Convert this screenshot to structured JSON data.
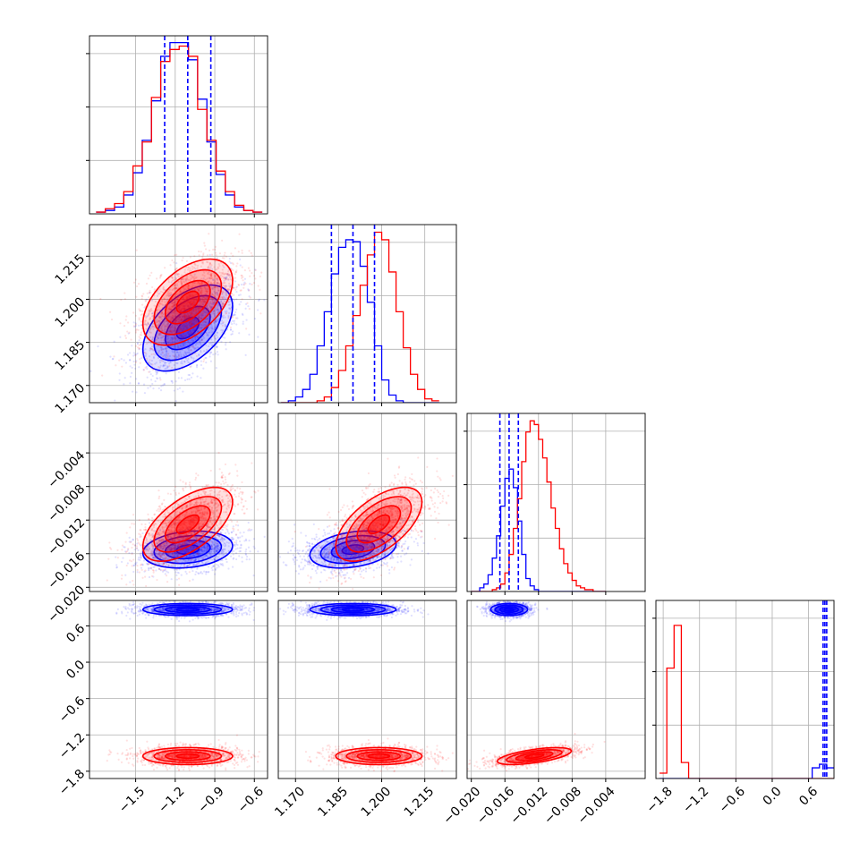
{
  "chart_data": {
    "type": "corner",
    "colors": {
      "series_a": "#0000ff",
      "series_b": "#ff0000"
    },
    "grid": true,
    "parameters": [
      {
        "range": [
          -1.85,
          -0.5
        ],
        "ticks": [
          -1.5,
          -1.2,
          -0.9,
          -0.6
        ],
        "tick_labels": [
          "−1.5",
          "−1.2",
          "−0.9",
          "−0.6"
        ]
      },
      {
        "range": [
          1.164,
          1.226
        ],
        "ticks": [
          1.17,
          1.185,
          1.2,
          1.215
        ],
        "tick_labels": [
          "1.170",
          "1.185",
          "1.200",
          "1.215"
        ]
      },
      {
        "range": [
          -0.0205,
          0.0007
        ],
        "ticks": [
          -0.02,
          -0.016,
          -0.012,
          -0.008,
          -0.004
        ],
        "tick_labels": [
          "−0.020",
          "−0.016",
          "−0.012",
          "−0.008",
          "−0.004"
        ]
      },
      {
        "range": [
          -1.92,
          1.02
        ],
        "ticks": [
          -1.8,
          -1.2,
          -0.6,
          0.0,
          0.6
        ],
        "tick_labels": [
          "−1.8",
          "−1.2",
          "−0.6",
          "0.0",
          "0.6"
        ]
      }
    ],
    "series": [
      {
        "name": "",
        "color": "#0000ff",
        "mean": [
          -1.105,
          1.19,
          -0.0155,
          0.87
        ],
        "std": [
          0.17,
          0.0075,
          0.0011,
          0.05
        ],
        "corr": {
          "0-1": 0.5,
          "0-2": 0.2,
          "1-2": 0.3
        },
        "quantiles": [
          [
            -1.28,
            -1.105,
            -0.93
          ],
          [
            1.1825,
            1.19,
            1.1975
          ],
          [
            -0.0166,
            -0.0155,
            -0.0144
          ],
          [
            0.84,
            0.87,
            0.9
          ]
        ]
      },
      {
        "name": "",
        "color": "#ff0000",
        "mean": [
          -1.105,
          1.199,
          -0.0125,
          -1.55
        ],
        "std": [
          0.17,
          0.0075,
          0.0022,
          0.07
        ],
        "corr": {
          "0-1": 0.5,
          "0-2": 0.6,
          "1-2": 0.6,
          "2-3": 0.6
        },
        "quantiles": []
      }
    ],
    "histograms": {
      "p0": {
        "bin_edges": [
          -1.8,
          -1.73,
          -1.66,
          -1.59,
          -1.52,
          -1.45,
          -1.38,
          -1.31,
          -1.24,
          -1.17,
          -1.1,
          -1.03,
          -0.96,
          -0.89,
          -0.82,
          -0.75,
          -0.68,
          -0.61,
          -0.54
        ],
        "blue": [
          1,
          2,
          4,
          11,
          24,
          43,
          66,
          92,
          100,
          100,
          90,
          67,
          42,
          23,
          11,
          4,
          2,
          1
        ],
        "red": [
          1,
          3,
          6,
          13,
          28,
          42,
          68,
          89,
          96,
          98,
          92,
          61,
          43,
          25,
          13,
          5,
          2,
          1
        ],
        "ymax": 104
      },
      "p1": {
        "bin_edges": [
          1.165,
          1.1675,
          1.17,
          1.1725,
          1.175,
          1.1775,
          1.18,
          1.1825,
          1.185,
          1.1875,
          1.19,
          1.1925,
          1.195,
          1.1975,
          1.2,
          1.2025,
          1.205,
          1.2075,
          1.21,
          1.2125,
          1.215,
          1.2175,
          1.22
        ],
        "blue": [
          0,
          1,
          3,
          7,
          15,
          30,
          48,
          68,
          82,
          86,
          85,
          72,
          53,
          30,
          12,
          4,
          1,
          0,
          0,
          0,
          0,
          0
        ],
        "red": [
          0,
          0,
          0,
          0,
          0,
          1,
          3,
          8,
          17,
          30,
          46,
          62,
          78,
          90,
          86,
          69,
          48,
          29,
          15,
          7,
          2,
          1
        ],
        "ymax": 94
      },
      "p2": {
        "bin_edges": [
          -0.02,
          -0.0195,
          -0.019,
          -0.0185,
          -0.018,
          -0.0175,
          -0.017,
          -0.0165,
          -0.016,
          -0.0155,
          -0.015,
          -0.0145,
          -0.014,
          -0.0135,
          -0.013,
          -0.0125,
          -0.012,
          -0.0115,
          -0.011,
          -0.0105,
          -0.01,
          -0.0095,
          -0.009,
          -0.0085,
          -0.008,
          -0.0075,
          -0.007,
          -0.0065,
          -0.006,
          -0.0055,
          -0.005,
          -0.0045,
          -0.004
        ],
        "blue": [
          0,
          0,
          2,
          4,
          9,
          18,
          30,
          46,
          61,
          66,
          56,
          38,
          20,
          7,
          3,
          1,
          0,
          0,
          0,
          0,
          0,
          0,
          0,
          0,
          0,
          0,
          0,
          0,
          0,
          0,
          0,
          0
        ],
        "red": [
          0,
          0,
          0,
          0,
          0,
          1,
          2,
          4,
          10,
          20,
          34,
          50,
          70,
          86,
          92,
          90,
          82,
          72,
          59,
          45,
          34,
          23,
          15,
          10,
          6,
          3,
          2,
          1,
          1,
          0,
          0,
          0
        ],
        "ymax": 96
      },
      "p3": {
        "bin_edges": [
          -1.86,
          -1.74,
          -1.62,
          -1.5,
          -1.38,
          -1.26,
          -1.14,
          -1.02,
          -0.9,
          -0.78,
          -0.66,
          -0.54,
          -0.42,
          -0.3,
          -0.18,
          -0.06,
          0.06,
          0.18,
          0.3,
          0.42,
          0.54,
          0.66,
          0.78,
          0.9,
          1.02
        ],
        "blue": [
          0,
          0,
          0,
          0,
          0,
          0,
          0,
          0,
          0,
          0,
          0,
          0,
          0,
          0,
          0,
          0,
          0,
          0,
          0,
          0,
          0,
          6,
          8,
          6
        ],
        "red": [
          3,
          62,
          86,
          9,
          0,
          0,
          0,
          0,
          0,
          0,
          0,
          0,
          0,
          0,
          0,
          0,
          0,
          0,
          0,
          0,
          0,
          0,
          0,
          0
        ],
        "ymax": 100
      }
    }
  }
}
